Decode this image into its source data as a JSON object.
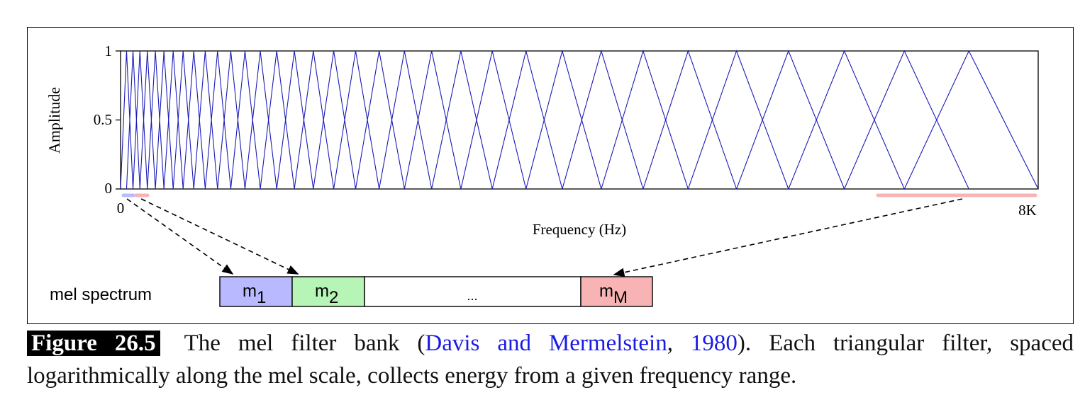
{
  "plot": {
    "y_axis_label": "Amplitude",
    "x_axis_label": "Frequency (Hz)",
    "y_ticks": [
      "1",
      "0.5",
      "0"
    ],
    "x_tick_start": "0",
    "x_tick_end": "8K",
    "filter_color": "#1a1ab8",
    "filter_count": 34
  },
  "mel_spectrum": {
    "label": "mel spectrum",
    "cells": [
      {
        "main": "m",
        "sub": "1",
        "color": "#b9b9ff"
      },
      {
        "main": "m",
        "sub": "2",
        "color": "#b6f5b6"
      },
      {
        "ellipsis": "...",
        "color": "#ffffff"
      },
      {
        "main": "m",
        "sub": "M",
        "color": "#f8b4b4"
      }
    ]
  },
  "caption": {
    "figure_label": "Figure 26.5",
    "text_before": "The mel filter bank (",
    "cite_authors": "Davis and Mermelstein",
    "cite_sep": ", ",
    "cite_year": "1980",
    "text_after": ").  Each triangular filter, spaced logarithmically along the mel scale, collects energy from a given frequency range."
  },
  "colors": {
    "band_blue": "#b9b9ff",
    "band_red": "#f8b4b4",
    "text_link": "#1a1ae6"
  }
}
